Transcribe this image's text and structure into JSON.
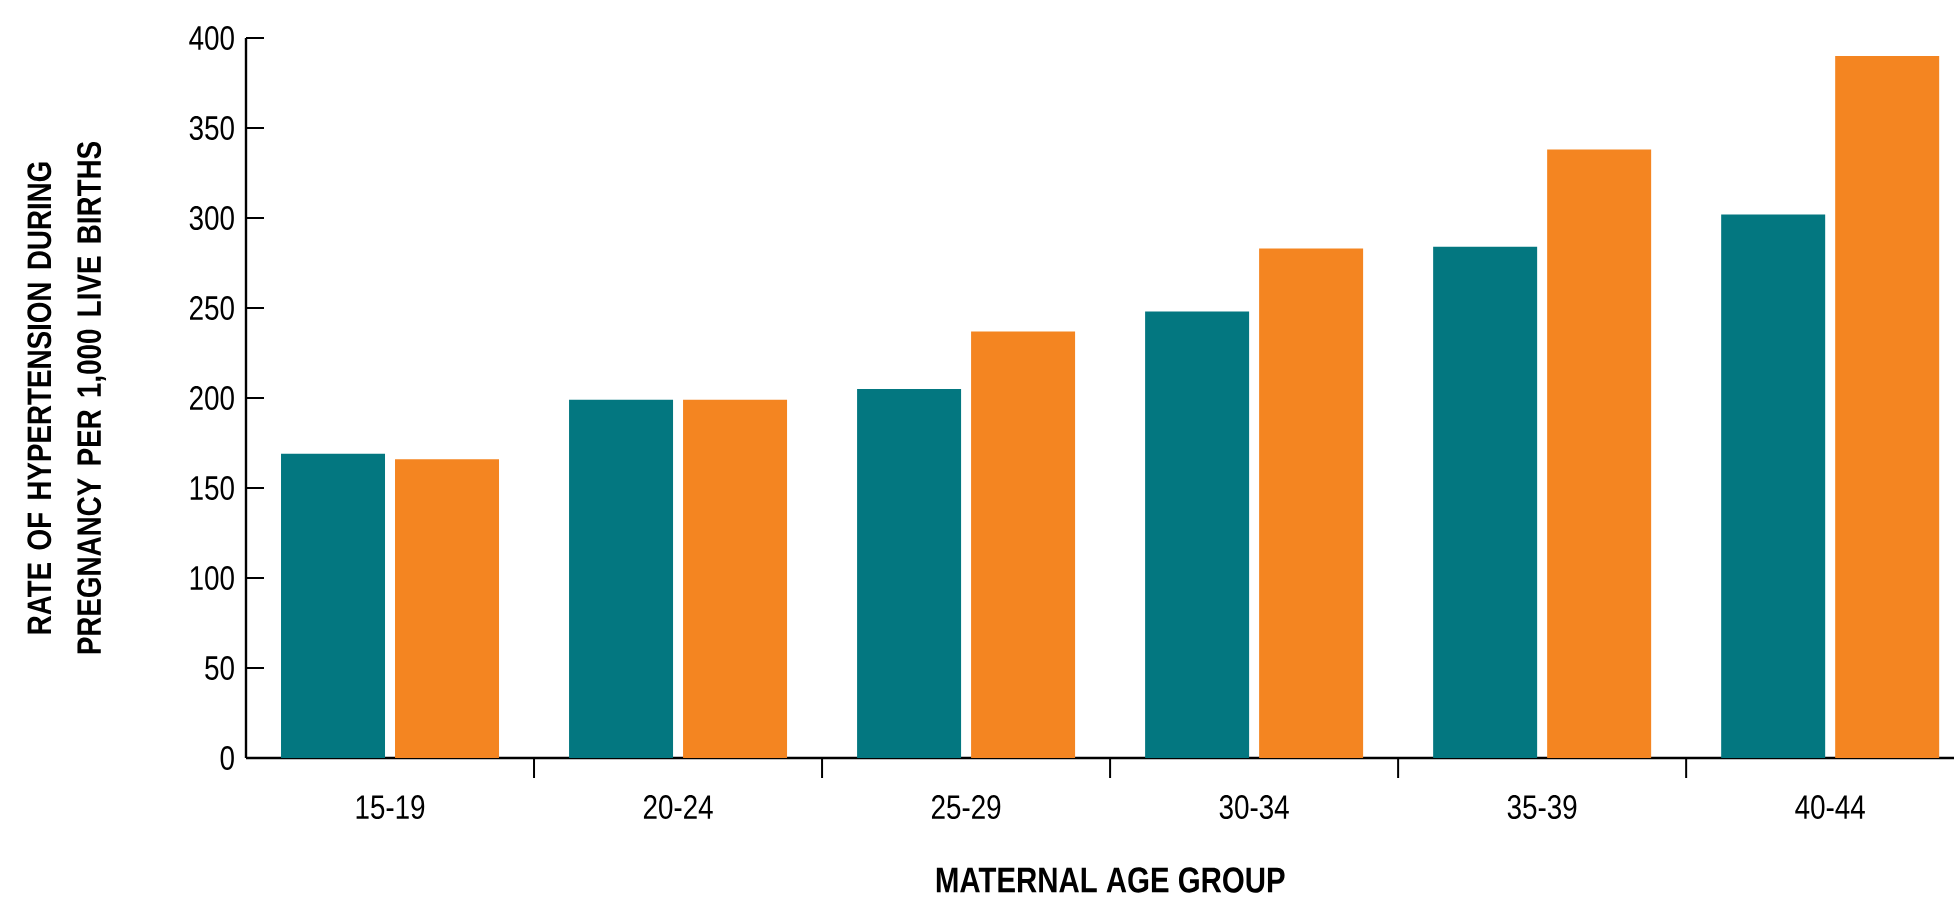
{
  "chart_data": {
    "type": "bar",
    "xlabel": "MATERNAL AGE GROUP",
    "ylabel": "RATE OF HYPERTENSION DURING PREGNANCY PER 1,000 LIVE BIRTHS",
    "categories": [
      "15-19",
      "20-24",
      "25-29",
      "30-34",
      "35-39",
      "40-44"
    ],
    "series": [
      {
        "color": "#037780",
        "values": [
          169,
          199,
          205,
          248,
          284,
          302
        ]
      },
      {
        "color": "#f48521",
        "values": [
          166,
          199,
          237,
          283,
          338,
          390
        ]
      }
    ],
    "ylim": [
      0,
      400
    ],
    "yticks": [
      0,
      50,
      100,
      150,
      200,
      250,
      300,
      350,
      400
    ],
    "grid": false
  }
}
